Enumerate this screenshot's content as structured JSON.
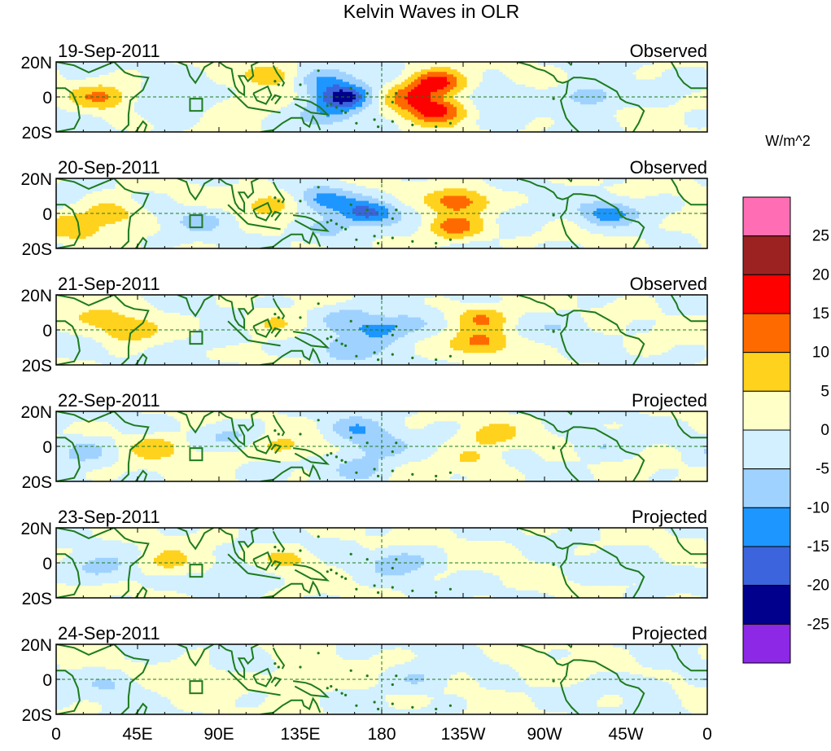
{
  "chart_data": {
    "type": "heatmap",
    "title": "Kelvin Waves in OLR",
    "units": "W/m^2",
    "xlim": [
      0,
      360
    ],
    "ylim": [
      -20,
      20
    ],
    "x_ticks": [
      {
        "lon": 0,
        "label": "0"
      },
      {
        "lon": 45,
        "label": "45E"
      },
      {
        "lon": 90,
        "label": "90E"
      },
      {
        "lon": 135,
        "label": "135E"
      },
      {
        "lon": 180,
        "label": "180"
      },
      {
        "lon": 225,
        "label": "135W"
      },
      {
        "lon": 270,
        "label": "90W"
      },
      {
        "lon": 315,
        "label": "45W"
      },
      {
        "lon": 360,
        "label": "0"
      }
    ],
    "y_ticks": [
      {
        "lat": 20,
        "label": "20N"
      },
      {
        "lat": 0,
        "label": "0"
      },
      {
        "lat": -20,
        "label": "20S"
      }
    ],
    "colorbar": {
      "levels": [
        "25",
        "20",
        "15",
        "10",
        "5",
        "0",
        "-5",
        "-10",
        "-15",
        "-20",
        "-25"
      ],
      "colors": [
        "#ff6eb4",
        "#9c2222",
        "#ff0000",
        "#ff6a00",
        "#ffd21e",
        "#ffffc8",
        "#d2f0ff",
        "#a0d2ff",
        "#1e96ff",
        "#3c64dc",
        "#00008c",
        "#8c28e6"
      ]
    },
    "panels": [
      {
        "date": "19-Sep-2011",
        "status": "Observed",
        "anomalies": [
          {
            "lon": 210,
            "lat": 8,
            "value": 18
          },
          {
            "lon": 210,
            "lat": -8,
            "value": 17
          },
          {
            "lon": 196,
            "lat": 0,
            "value": 12
          },
          {
            "lon": 160,
            "lat": 0,
            "value": -22
          },
          {
            "lon": 148,
            "lat": 10,
            "value": -12
          },
          {
            "lon": 150,
            "lat": -10,
            "value": -9
          },
          {
            "lon": 120,
            "lat": 12,
            "value": 8
          },
          {
            "lon": 105,
            "lat": -5,
            "value": 6
          },
          {
            "lon": 25,
            "lat": 0,
            "value": 10
          },
          {
            "lon": 295,
            "lat": 0,
            "value": -10
          },
          {
            "lon": 60,
            "lat": -6,
            "value": -6
          },
          {
            "lon": 245,
            "lat": 0,
            "value": -5
          }
        ]
      },
      {
        "date": "20-Sep-2011",
        "status": "Observed",
        "anomalies": [
          {
            "lon": 222,
            "lat": 7,
            "value": 13
          },
          {
            "lon": 220,
            "lat": -8,
            "value": 13
          },
          {
            "lon": 172,
            "lat": 0,
            "value": -16
          },
          {
            "lon": 148,
            "lat": 8,
            "value": -12
          },
          {
            "lon": 150,
            "lat": -10,
            "value": -7
          },
          {
            "lon": 118,
            "lat": 6,
            "value": 8
          },
          {
            "lon": 30,
            "lat": 0,
            "value": 9
          },
          {
            "lon": 10,
            "lat": -8,
            "value": 8
          },
          {
            "lon": 305,
            "lat": 0,
            "value": -12
          },
          {
            "lon": 80,
            "lat": -4,
            "value": -6
          },
          {
            "lon": 260,
            "lat": -2,
            "value": -4
          }
        ]
      },
      {
        "date": "21-Sep-2011",
        "status": "Observed",
        "anomalies": [
          {
            "lon": 235,
            "lat": 7,
            "value": 11
          },
          {
            "lon": 235,
            "lat": -7,
            "value": 11
          },
          {
            "lon": 178,
            "lat": 0,
            "value": -12
          },
          {
            "lon": 160,
            "lat": 8,
            "value": -8
          },
          {
            "lon": 160,
            "lat": -12,
            "value": -9
          },
          {
            "lon": 195,
            "lat": 4,
            "value": -6
          },
          {
            "lon": 120,
            "lat": 4,
            "value": 6
          },
          {
            "lon": 40,
            "lat": 0,
            "value": 10
          },
          {
            "lon": 20,
            "lat": 8,
            "value": 5
          },
          {
            "lon": 280,
            "lat": 2,
            "value": -4
          },
          {
            "lon": 90,
            "lat": -5,
            "value": -4
          }
        ]
      },
      {
        "date": "22-Sep-2011",
        "status": "Projected",
        "anomalies": [
          {
            "lon": 240,
            "lat": 6,
            "value": 7
          },
          {
            "lon": 230,
            "lat": -7,
            "value": 6
          },
          {
            "lon": 178,
            "lat": 0,
            "value": -9
          },
          {
            "lon": 165,
            "lat": 10,
            "value": -8
          },
          {
            "lon": 168,
            "lat": -12,
            "value": -8
          },
          {
            "lon": 55,
            "lat": 0,
            "value": 8
          },
          {
            "lon": 125,
            "lat": 0,
            "value": 6
          },
          {
            "lon": 15,
            "lat": -3,
            "value": -8
          },
          {
            "lon": 85,
            "lat": -8,
            "value": 5
          },
          {
            "lon": 95,
            "lat": 6,
            "value": -6
          },
          {
            "lon": 300,
            "lat": 0,
            "value": -5
          }
        ]
      },
      {
        "date": "23-Sep-2011",
        "status": "Projected",
        "anomalies": [
          {
            "lon": 190,
            "lat": 0,
            "value": -9
          },
          {
            "lon": 128,
            "lat": 2,
            "value": 6
          },
          {
            "lon": 62,
            "lat": 0,
            "value": 7
          },
          {
            "lon": 25,
            "lat": -3,
            "value": -7
          },
          {
            "lon": 245,
            "lat": 4,
            "value": 3
          },
          {
            "lon": 100,
            "lat": -6,
            "value": -4
          },
          {
            "lon": 310,
            "lat": -3,
            "value": -3
          }
        ]
      },
      {
        "date": "24-Sep-2011",
        "status": "Projected",
        "anomalies": [
          {
            "lon": 200,
            "lat": 0,
            "value": -6
          },
          {
            "lon": 138,
            "lat": 0,
            "value": 6
          },
          {
            "lon": 75,
            "lat": 0,
            "value": 5
          },
          {
            "lon": 30,
            "lat": -3,
            "value": -5
          },
          {
            "lon": 265,
            "lat": 3,
            "value": 3
          },
          {
            "lon": 330,
            "lat": -2,
            "value": -3
          }
        ]
      }
    ]
  }
}
